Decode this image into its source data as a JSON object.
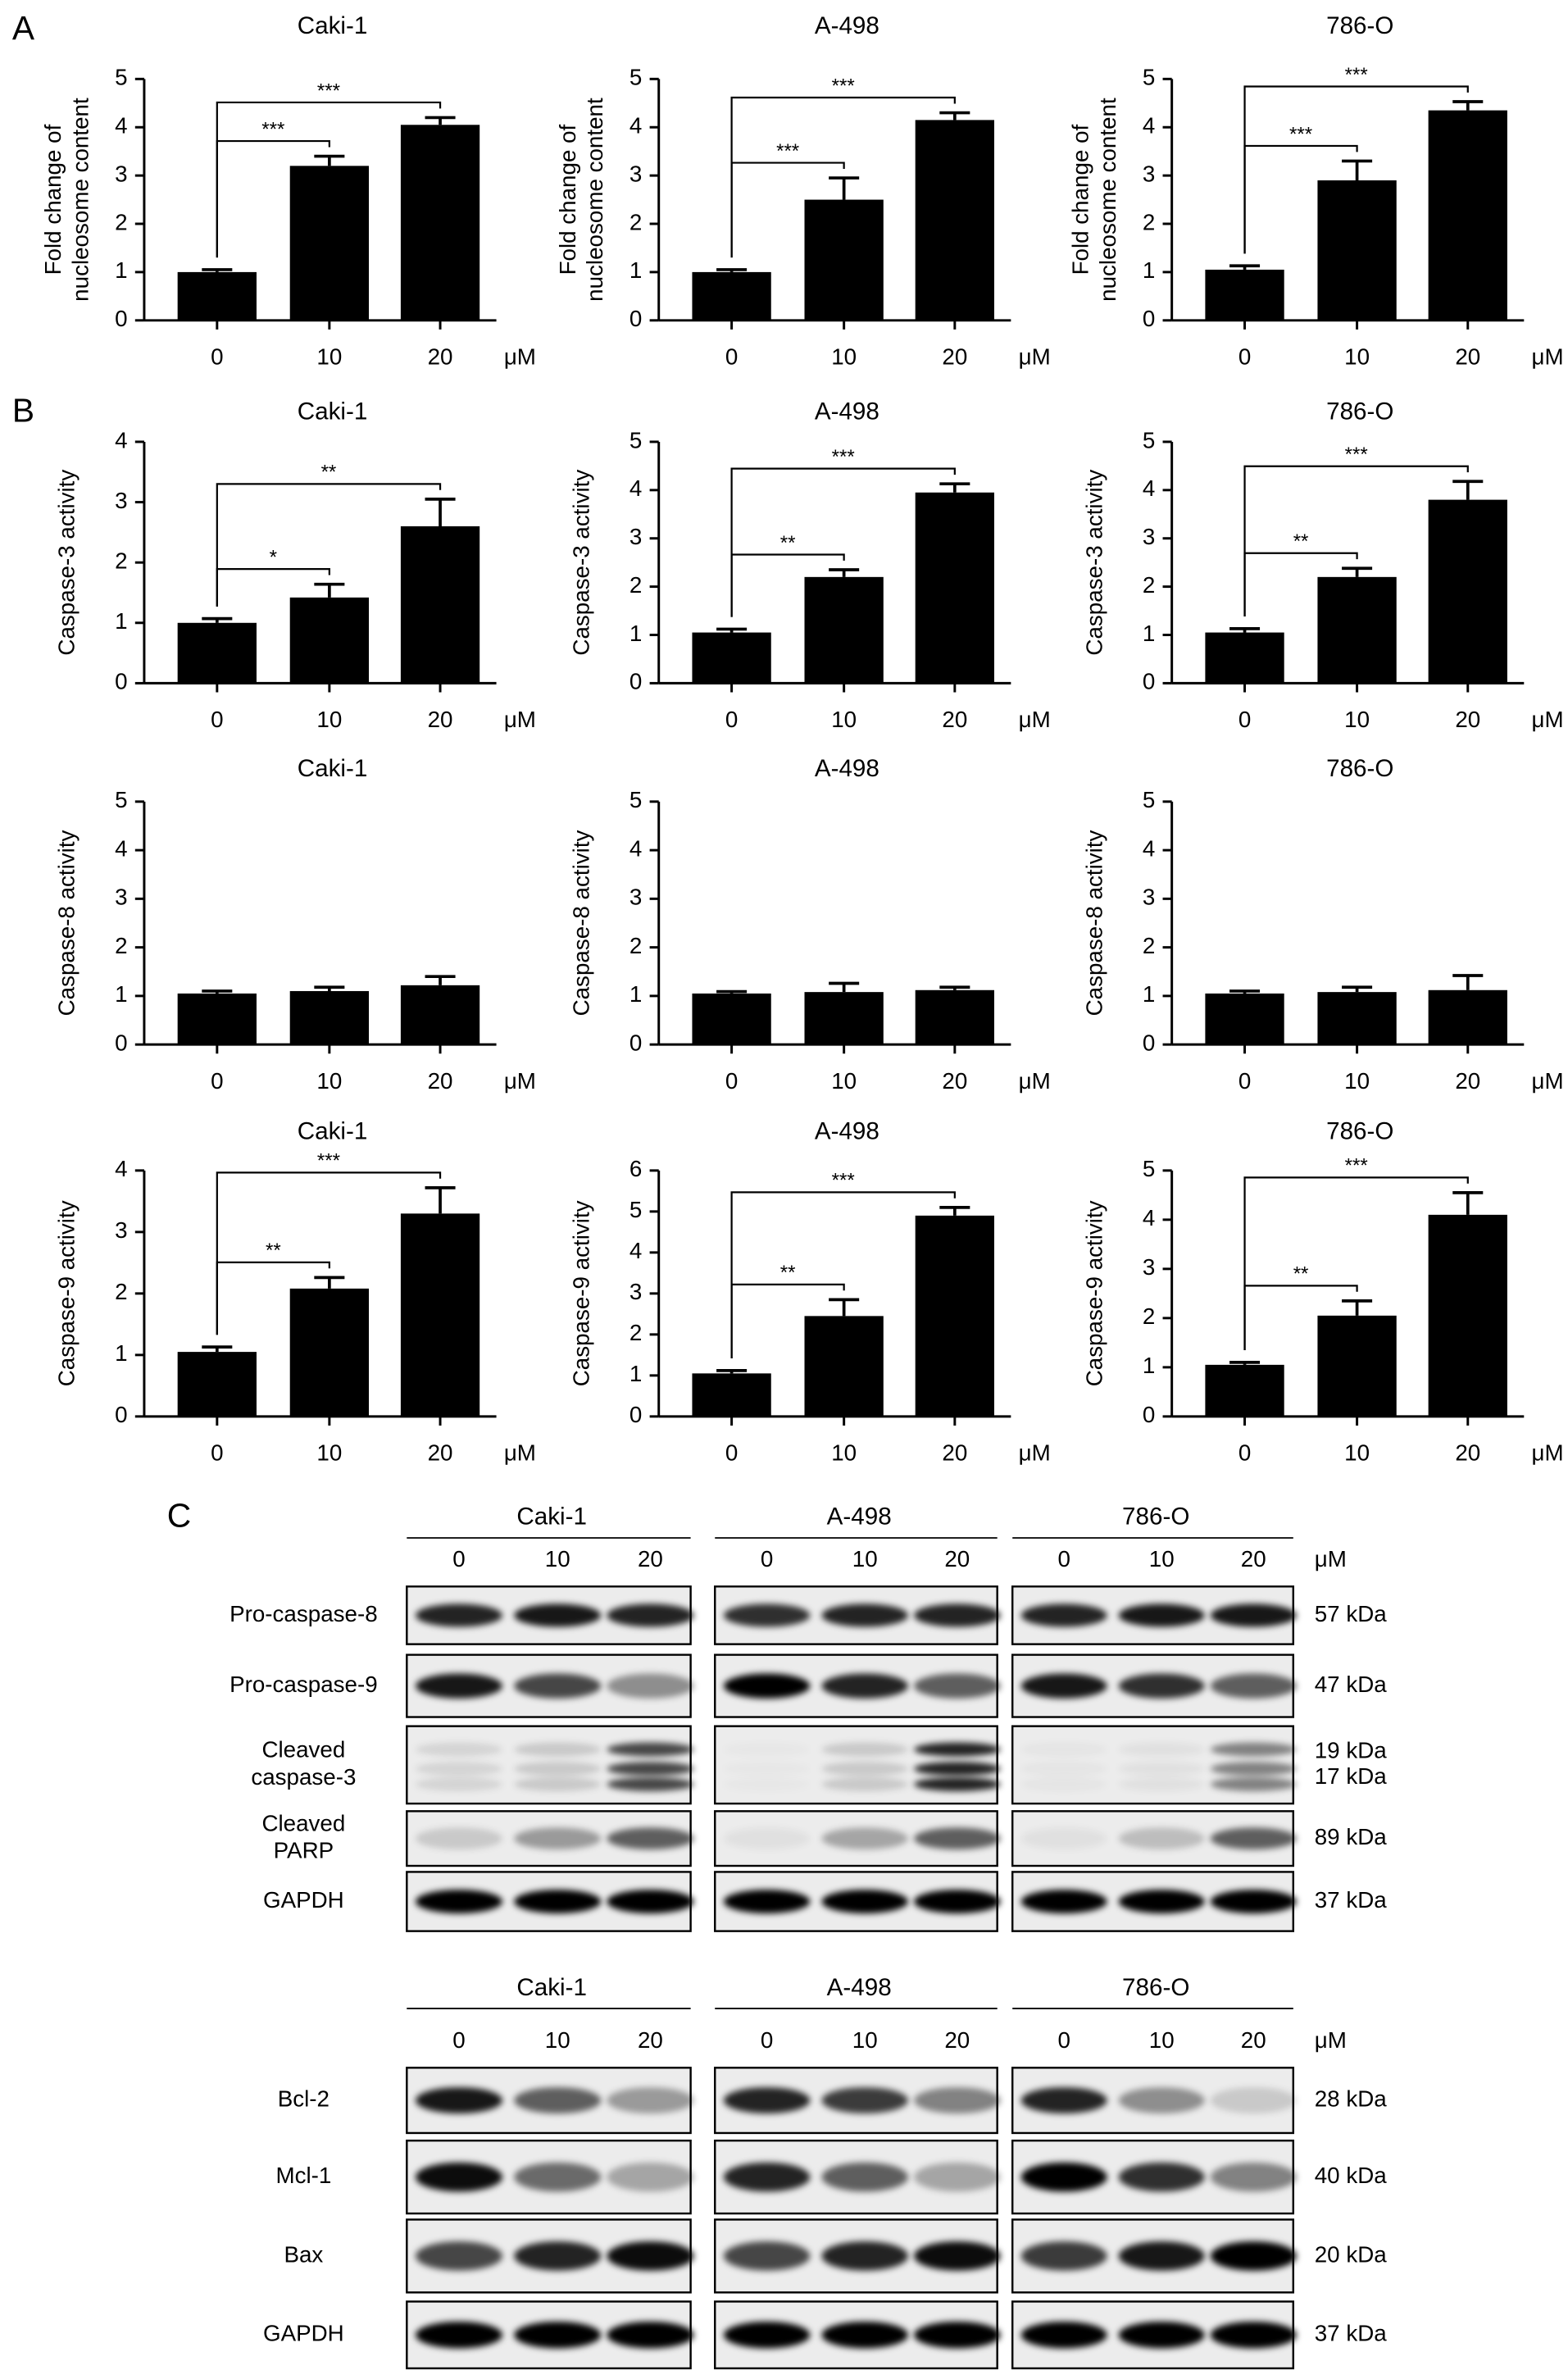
{
  "panel_labels": [
    "A",
    "B",
    "C"
  ],
  "chart_data": [
    {
      "type": "bar",
      "title": "Caki-1",
      "ylabel": [
        "Fold change of",
        "nucleosome content"
      ],
      "categories": [
        "0",
        "10",
        "20"
      ],
      "x_unit": "μM",
      "values": [
        1.0,
        3.2,
        4.05
      ],
      "errors": [
        0.05,
        0.2,
        0.15
      ],
      "color": "#000000",
      "ylim": [
        0,
        5
      ],
      "yticks": [
        0,
        1,
        2,
        3,
        4,
        5
      ],
      "annotations": [
        {
          "from": 0,
          "to": 1,
          "label": "***"
        },
        {
          "from": 0,
          "to": 2,
          "label": "***"
        }
      ]
    },
    {
      "type": "bar",
      "title": "A-498",
      "ylabel": [
        "Fold change of",
        "nucleosome content"
      ],
      "categories": [
        "0",
        "10",
        "20"
      ],
      "x_unit": "μM",
      "values": [
        1.0,
        2.5,
        4.15
      ],
      "errors": [
        0.05,
        0.45,
        0.15
      ],
      "color": "#000000",
      "ylim": [
        0,
        5
      ],
      "yticks": [
        0,
        1,
        2,
        3,
        4,
        5
      ],
      "annotations": [
        {
          "from": 0,
          "to": 1,
          "label": "***"
        },
        {
          "from": 0,
          "to": 2,
          "label": "***"
        }
      ]
    },
    {
      "type": "bar",
      "title": "786-O",
      "ylabel": [
        "Fold change of",
        "nucleosome content"
      ],
      "categories": [
        "0",
        "10",
        "20"
      ],
      "x_unit": "μM",
      "values": [
        1.05,
        2.9,
        4.35
      ],
      "errors": [
        0.08,
        0.4,
        0.18
      ],
      "color": "#000000",
      "ylim": [
        0,
        5
      ],
      "yticks": [
        0,
        1,
        2,
        3,
        4,
        5
      ],
      "annotations": [
        {
          "from": 0,
          "to": 1,
          "label": "***"
        },
        {
          "from": 0,
          "to": 2,
          "label": "***"
        }
      ]
    },
    {
      "type": "bar",
      "title": "Caki-1",
      "ylabel": [
        "Caspase-3 activity"
      ],
      "categories": [
        "0",
        "10",
        "20"
      ],
      "x_unit": "μM",
      "values": [
        1.0,
        1.42,
        2.6
      ],
      "errors": [
        0.07,
        0.22,
        0.45
      ],
      "color": "#000000",
      "ylim": [
        0,
        4
      ],
      "yticks": [
        0,
        1,
        2,
        3,
        4
      ],
      "annotations": [
        {
          "from": 0,
          "to": 1,
          "label": "*"
        },
        {
          "from": 0,
          "to": 2,
          "label": "**"
        }
      ]
    },
    {
      "type": "bar",
      "title": "A-498",
      "ylabel": [
        "Caspase-3 activity"
      ],
      "categories": [
        "0",
        "10",
        "20"
      ],
      "x_unit": "μM",
      "values": [
        1.05,
        2.2,
        3.95
      ],
      "errors": [
        0.07,
        0.15,
        0.18
      ],
      "color": "#000000",
      "ylim": [
        0,
        5
      ],
      "yticks": [
        0,
        1,
        2,
        3,
        4,
        5
      ],
      "annotations": [
        {
          "from": 0,
          "to": 1,
          "label": "**"
        },
        {
          "from": 0,
          "to": 2,
          "label": "***"
        }
      ]
    },
    {
      "type": "bar",
      "title": "786-O",
      "ylabel": [
        "Caspase-3 activity"
      ],
      "categories": [
        "0",
        "10",
        "20"
      ],
      "x_unit": "μM",
      "values": [
        1.05,
        2.2,
        3.8
      ],
      "errors": [
        0.08,
        0.18,
        0.38
      ],
      "color": "#000000",
      "ylim": [
        0,
        5
      ],
      "yticks": [
        0,
        1,
        2,
        3,
        4,
        5
      ],
      "annotations": [
        {
          "from": 0,
          "to": 1,
          "label": "**"
        },
        {
          "from": 0,
          "to": 2,
          "label": "***"
        }
      ]
    },
    {
      "type": "bar",
      "title": "Caki-1",
      "ylabel": [
        "Caspase-8 activity"
      ],
      "categories": [
        "0",
        "10",
        "20"
      ],
      "x_unit": "μM",
      "values": [
        1.05,
        1.1,
        1.22
      ],
      "errors": [
        0.05,
        0.08,
        0.18
      ],
      "color": "#000000",
      "ylim": [
        0,
        5
      ],
      "yticks": [
        0,
        1,
        2,
        3,
        4,
        5
      ],
      "annotations": []
    },
    {
      "type": "bar",
      "title": "A-498",
      "ylabel": [
        "Caspase-8 activity"
      ],
      "categories": [
        "0",
        "10",
        "20"
      ],
      "x_unit": "μM",
      "values": [
        1.05,
        1.08,
        1.12
      ],
      "errors": [
        0.04,
        0.18,
        0.06
      ],
      "color": "#000000",
      "ylim": [
        0,
        5
      ],
      "yticks": [
        0,
        1,
        2,
        3,
        4,
        5
      ],
      "annotations": []
    },
    {
      "type": "bar",
      "title": "786-O",
      "ylabel": [
        "Caspase-8 activity"
      ],
      "categories": [
        "0",
        "10",
        "20"
      ],
      "x_unit": "μM",
      "values": [
        1.05,
        1.08,
        1.12
      ],
      "errors": [
        0.05,
        0.1,
        0.3
      ],
      "color": "#000000",
      "ylim": [
        0,
        5
      ],
      "yticks": [
        0,
        1,
        2,
        3,
        4,
        5
      ],
      "annotations": []
    },
    {
      "type": "bar",
      "title": "Caki-1",
      "ylabel": [
        "Caspase-9 activity"
      ],
      "categories": [
        "0",
        "10",
        "20"
      ],
      "x_unit": "μM",
      "values": [
        1.05,
        2.08,
        3.3
      ],
      "errors": [
        0.08,
        0.18,
        0.42
      ],
      "color": "#000000",
      "ylim": [
        0,
        4
      ],
      "yticks": [
        0,
        1,
        2,
        3,
        4
      ],
      "annotations": [
        {
          "from": 0,
          "to": 1,
          "label": "**"
        },
        {
          "from": 0,
          "to": 2,
          "label": "***"
        }
      ]
    },
    {
      "type": "bar",
      "title": "A-498",
      "ylabel": [
        "Caspase-9 activity"
      ],
      "categories": [
        "0",
        "10",
        "20"
      ],
      "x_unit": "μM",
      "values": [
        1.05,
        2.45,
        4.9
      ],
      "errors": [
        0.07,
        0.4,
        0.2
      ],
      "color": "#000000",
      "ylim": [
        0,
        6
      ],
      "yticks": [
        0,
        1,
        2,
        3,
        4,
        5,
        6
      ],
      "annotations": [
        {
          "from": 0,
          "to": 1,
          "label": "**"
        },
        {
          "from": 0,
          "to": 2,
          "label": "***"
        }
      ]
    },
    {
      "type": "bar",
      "title": "786-O",
      "ylabel": [
        "Caspase-9 activity"
      ],
      "categories": [
        "0",
        "10",
        "20"
      ],
      "x_unit": "μM",
      "values": [
        1.05,
        2.05,
        4.1
      ],
      "errors": [
        0.05,
        0.3,
        0.45
      ],
      "color": "#000000",
      "ylim": [
        0,
        5
      ],
      "yticks": [
        0,
        1,
        2,
        3,
        4,
        5
      ],
      "annotations": [
        {
          "from": 0,
          "to": 1,
          "label": "**"
        },
        {
          "from": 0,
          "to": 2,
          "label": "***"
        }
      ]
    }
  ],
  "blots": [
    {
      "cell_lines": [
        "Caki-1",
        "A-498",
        "786-O"
      ],
      "doses": [
        "0",
        "10",
        "20"
      ],
      "unit": "μM",
      "rows": [
        {
          "label": [
            "Pro-caspase-8"
          ],
          "sizes": [
            "57 kDa"
          ]
        },
        {
          "label": [
            "Pro-caspase-9"
          ],
          "sizes": [
            "47 kDa"
          ]
        },
        {
          "label": [
            "Cleaved",
            "caspase-3"
          ],
          "sizes": [
            "19 kDa",
            "17 kDa"
          ]
        },
        {
          "label": [
            "Cleaved",
            "PARP"
          ],
          "sizes": [
            "89 kDa"
          ]
        },
        {
          "label": [
            "GAPDH"
          ],
          "sizes": [
            "37 kDa"
          ]
        }
      ]
    },
    {
      "cell_lines": [
        "Caki-1",
        "A-498",
        "786-O"
      ],
      "doses": [
        "0",
        "10",
        "20"
      ],
      "unit": "μM",
      "rows": [
        {
          "label": [
            "Bcl-2"
          ],
          "sizes": [
            "28 kDa"
          ]
        },
        {
          "label": [
            "Mcl-1"
          ],
          "sizes": [
            "40 kDa"
          ]
        },
        {
          "label": [
            "Bax"
          ],
          "sizes": [
            "20 kDa"
          ]
        },
        {
          "label": [
            "GAPDH"
          ],
          "sizes": [
            "37 kDa"
          ]
        }
      ]
    }
  ]
}
